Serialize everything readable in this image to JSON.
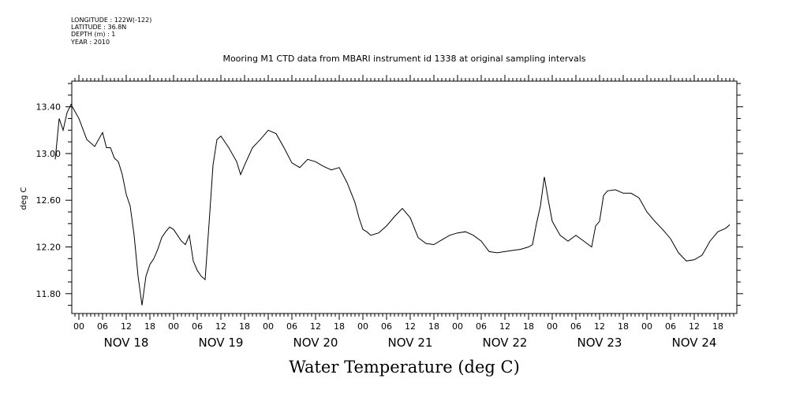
{
  "meta": {
    "longitude": "LONGITUDE : 122W(-122)",
    "latitude": "LATITUDE : 36.8N",
    "depth": "DEPTH (m) : 1",
    "year": "YEAR : 2010"
  },
  "chart_data": {
    "type": "line",
    "title": "Mooring M1 CTD data from MBARI instrument id 1338 at original sampling intervals",
    "xlabel": "Water Temperature (deg C)",
    "ylabel": "deg C",
    "xlim_hours": [
      -9,
      10200
    ],
    "ylim": [
      11.63,
      13.62
    ],
    "yticks": [
      11.8,
      12.2,
      12.6,
      13.0,
      13.4
    ],
    "ytick_labels": [
      "11.80",
      "12.20",
      "12.60",
      "13.00",
      "13.40"
    ],
    "x_hour_ticks": [
      "06",
      "12",
      "18",
      "00"
    ],
    "day_labels": [
      "NOV 18",
      "NOV 19",
      "NOV 20",
      "NOV 21",
      "NOV 22",
      "NOV 23",
      "NOV 24"
    ],
    "grid": false,
    "series": [
      {
        "x": [
          "NOV 17 18:00",
          "NOV 17 19:00",
          "NOV 17 20:00",
          "NOV 17 21:00",
          "NOV 17 22:00",
          "NOV 18 00:00",
          "NOV 18 02:00",
          "NOV 18 04:00",
          "NOV 18 06:00",
          "NOV 18 07:00",
          "NOV 18 08:00",
          "NOV 18 09:00",
          "NOV 18 10:00",
          "NOV 18 11:00",
          "NOV 18 12:00",
          "NOV 18 13:00",
          "NOV 18 14:00",
          "NOV 18 15:00",
          "NOV 18 16:00",
          "NOV 18 17:00",
          "NOV 18 18:00",
          "NOV 18 19:00",
          "NOV 18 20:00",
          "NOV 18 21:00",
          "NOV 18 22:00",
          "NOV 18 23:00",
          "NOV 19 00:00",
          "NOV 19 01:00",
          "NOV 19 02:00",
          "NOV 19 03:00",
          "NOV 19 04:00",
          "NOV 19 05:00",
          "NOV 19 06:00",
          "NOV 19 07:00",
          "NOV 19 08:00",
          "NOV 19 09:00",
          "NOV 19 10:00",
          "NOV 19 11:00",
          "NOV 19 12:00",
          "NOV 19 14:00",
          "NOV 19 16:00",
          "NOV 19 17:00",
          "NOV 19 18:00",
          "NOV 19 20:00",
          "NOV 19 22:00",
          "NOV 20 00:00",
          "NOV 20 02:00",
          "NOV 20 04:00",
          "NOV 20 06:00",
          "NOV 20 08:00",
          "NOV 20 10:00",
          "NOV 20 12:00",
          "NOV 20 14:00",
          "NOV 20 16:00",
          "NOV 20 18:00",
          "NOV 20 20:00",
          "NOV 20 22:00",
          "NOV 20 23:00",
          "NOV 21 00:00",
          "NOV 21 01:00",
          "NOV 21 02:00",
          "NOV 21 04:00",
          "NOV 21 06:00",
          "NOV 21 08:00",
          "NOV 21 10:00",
          "NOV 21 12:00",
          "NOV 21 14:00",
          "NOV 21 16:00",
          "NOV 21 18:00",
          "NOV 21 20:00",
          "NOV 21 22:00",
          "NOV 22 00:00",
          "NOV 22 02:00",
          "NOV 22 04:00",
          "NOV 22 06:00",
          "NOV 22 08:00",
          "NOV 22 10:00",
          "NOV 22 12:00",
          "NOV 22 14:00",
          "NOV 22 16:00",
          "NOV 22 18:00",
          "NOV 22 19:00",
          "NOV 22 20:00",
          "NOV 22 21:00",
          "NOV 22 22:00",
          "NOV 22 23:00",
          "NOV 23 00:00",
          "NOV 23 02:00",
          "NOV 23 04:00",
          "NOV 23 06:00",
          "NOV 23 08:00",
          "NOV 23 10:00",
          "NOV 23 11:00",
          "NOV 23 12:00",
          "NOV 23 13:00",
          "NOV 23 14:00",
          "NOV 23 16:00",
          "NOV 23 18:00",
          "NOV 23 20:00",
          "NOV 23 22:00",
          "NOV 24 00:00",
          "NOV 24 02:00",
          "NOV 24 04:00",
          "NOV 24 06:00",
          "NOV 24 08:00",
          "NOV 24 10:00",
          "NOV 24 12:00",
          "NOV 24 14:00",
          "NOV 24 16:00",
          "NOV 24 18:00",
          "NOV 24 20:00",
          "NOV 24 21:00"
        ],
        "values": [
          12.95,
          13.3,
          13.2,
          13.35,
          13.42,
          13.3,
          13.12,
          13.06,
          13.18,
          13.05,
          13.05,
          12.96,
          12.93,
          12.82,
          12.65,
          12.55,
          12.3,
          11.95,
          11.7,
          11.95,
          12.05,
          12.1,
          12.18,
          12.28,
          12.33,
          12.37,
          12.35,
          12.3,
          12.25,
          12.22,
          12.3,
          12.08,
          12.0,
          11.95,
          11.92,
          12.4,
          12.9,
          13.12,
          13.15,
          13.05,
          12.93,
          12.82,
          12.9,
          13.05,
          13.12,
          13.2,
          13.17,
          13.05,
          12.92,
          12.88,
          12.95,
          12.93,
          12.89,
          12.86,
          12.88,
          12.75,
          12.58,
          12.45,
          12.35,
          12.33,
          12.3,
          12.32,
          12.38,
          12.46,
          12.53,
          12.45,
          12.28,
          12.23,
          12.22,
          12.26,
          12.3,
          12.32,
          12.33,
          12.3,
          12.25,
          12.16,
          12.15,
          12.16,
          12.17,
          12.18,
          12.2,
          12.22,
          12.4,
          12.55,
          12.8,
          12.6,
          12.42,
          12.3,
          12.25,
          12.3,
          12.25,
          12.2,
          12.38,
          12.42,
          12.64,
          12.68,
          12.69,
          12.66,
          12.66,
          12.62,
          12.5,
          12.42,
          12.35,
          12.27,
          12.15,
          12.08,
          12.09,
          12.13,
          12.25,
          12.33,
          12.36,
          12.39
        ]
      }
    ]
  }
}
